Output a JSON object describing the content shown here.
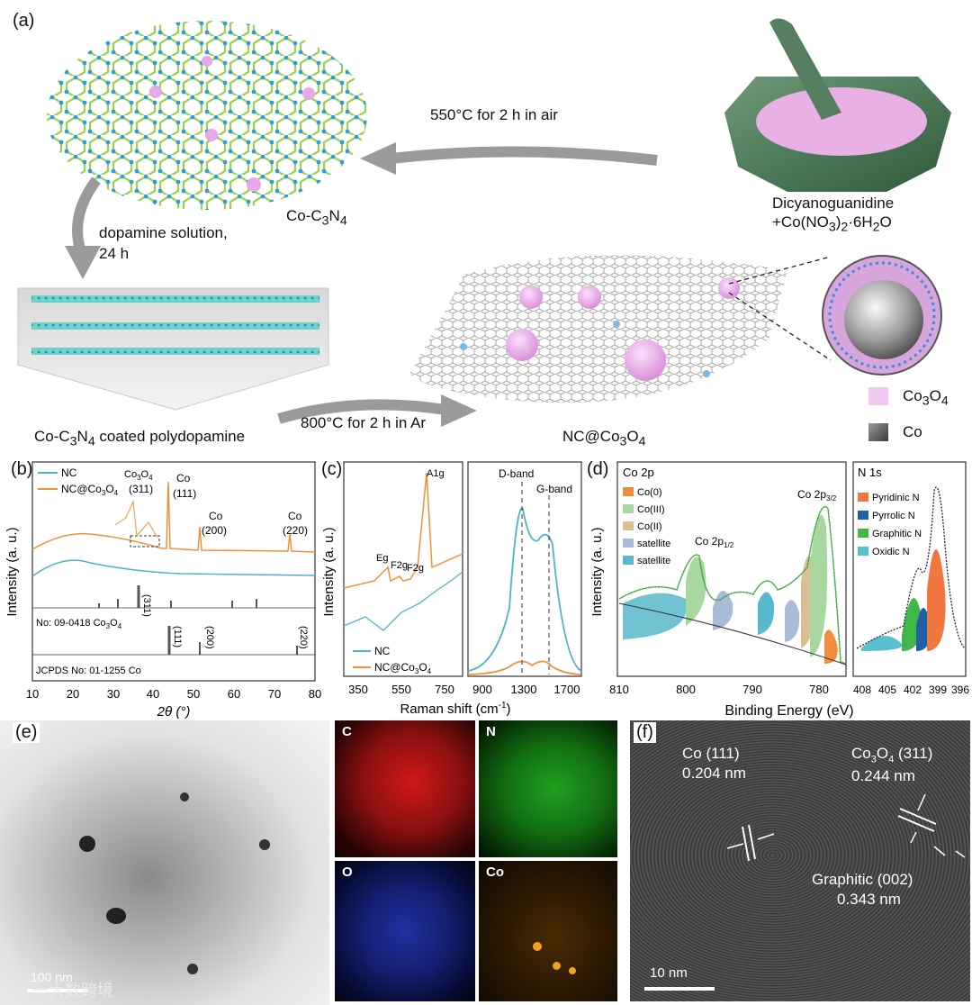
{
  "panel_a": {
    "letter": "(a)",
    "step_air": "550°C for 2 h in air",
    "co_c3n4_prefix": "Co-C",
    "co_c3n4_sub1": "3",
    "co_c3n4_mid": "N",
    "co_c3n4_sub2": "4",
    "dopamine_line1": "dopamine solution,",
    "dopamine_line2": "24 h",
    "precursor_line1": "Dicyanoguanidine",
    "precursor_line2": "+Co(NO",
    "precursor_sub1": "3",
    "precursor_mid": ")",
    "precursor_sub2": "2",
    "precursor_end": "·6H",
    "precursor_sub3": "2",
    "precursor_o": "O",
    "coated_prefix": "Co-C",
    "coated_sub1": "3",
    "coated_mid": "N",
    "coated_sub2": "4",
    "coated_end": " coated polydopamine",
    "step_ar": "800°C for 2 h in Ar",
    "product_prefix": "NC@Co",
    "product_sub1": "3",
    "product_mid": "O",
    "product_sub2": "4",
    "legend_co3o4_prefix": "Co",
    "legend_co3o4_sub1": "3",
    "legend_co3o4_mid": "O",
    "legend_co3o4_sub2": "4",
    "legend_co": "Co"
  },
  "panel_b": {
    "letter": "(b)",
    "ylabel": "Intensity (a. u.)",
    "xlabel": "2θ (°)",
    "legend": [
      "NC",
      "NC@Co3O4"
    ],
    "ref1": "No: 09-0418 Co3O4",
    "ref2": "JCPDS No: 01-1255 Co",
    "peak_labels": [
      "Co3O4",
      "(311)",
      "Co",
      "(111)",
      "Co",
      "(200)",
      "Co",
      "(220)"
    ],
    "ref_labels": [
      "(311)",
      "(111)",
      "(200)",
      "(220)"
    ],
    "xticks": [
      "10",
      "20",
      "30",
      "40",
      "50",
      "60",
      "70",
      "80"
    ]
  },
  "panel_c": {
    "letter": "(c)",
    "ylabel": "Intensity (a. u.)",
    "xlabel": "Raman shift (cm-1)",
    "legend": [
      "NC",
      "NC@Co3O4"
    ],
    "peaks": [
      "Eg",
      "F2g",
      "F2g",
      "A1g"
    ],
    "bands": [
      "D-band",
      "G-band"
    ],
    "xticks_left": [
      "350",
      "550",
      "750"
    ],
    "xticks_right": [
      "900",
      "1300",
      "1700"
    ]
  },
  "panel_d": {
    "letter": "(d)",
    "ylabel": "Intensity (a. u.)",
    "xlabel": "Binding Energy (eV)",
    "co_title": "Co 2p",
    "co_legend": [
      "Co(0)",
      "Co(III)",
      "Co(II)",
      "satellite",
      "satellite"
    ],
    "co_peaks": [
      "Co 2p1/2",
      "Co 2p3/2"
    ],
    "n_title": "N 1s",
    "n_legend": [
      "Pyridinic N",
      "Pyrrolic N",
      "Graphitic N",
      "Oxidic N"
    ],
    "xticks_co": [
      "810",
      "800",
      "790",
      "780"
    ],
    "xticks_n": [
      "408",
      "405",
      "402",
      "399",
      "396"
    ]
  },
  "panel_e": {
    "letter": "(e)",
    "scale": "100 nm",
    "maps": [
      "C",
      "N",
      "O",
      "Co"
    ],
    "watermark": "一大数跨境"
  },
  "panel_f": {
    "letter": "(f)",
    "co_label1": "Co (111)",
    "co_label2": "0.204 nm",
    "co3o4_label1": "Co3O4 (311)",
    "co3o4_label2": "0.244 nm",
    "graphitic_label1": "Graphitic (002)",
    "graphitic_label2": "0.343 nm",
    "scale": "10 nm"
  },
  "colors": {
    "nc_blue": "#4fb3c8",
    "nc_co3o4_orange": "#f0913a",
    "co0": "#f08c3c",
    "co3": "#a8d8a0",
    "co2": "#d8c090",
    "sat1": "#a8bcd8",
    "sat2": "#58b8cc",
    "pyridinic": "#f07840",
    "pyrrolic": "#2060a8",
    "graphitic": "#40b848",
    "oxidic": "#58c0d0"
  }
}
